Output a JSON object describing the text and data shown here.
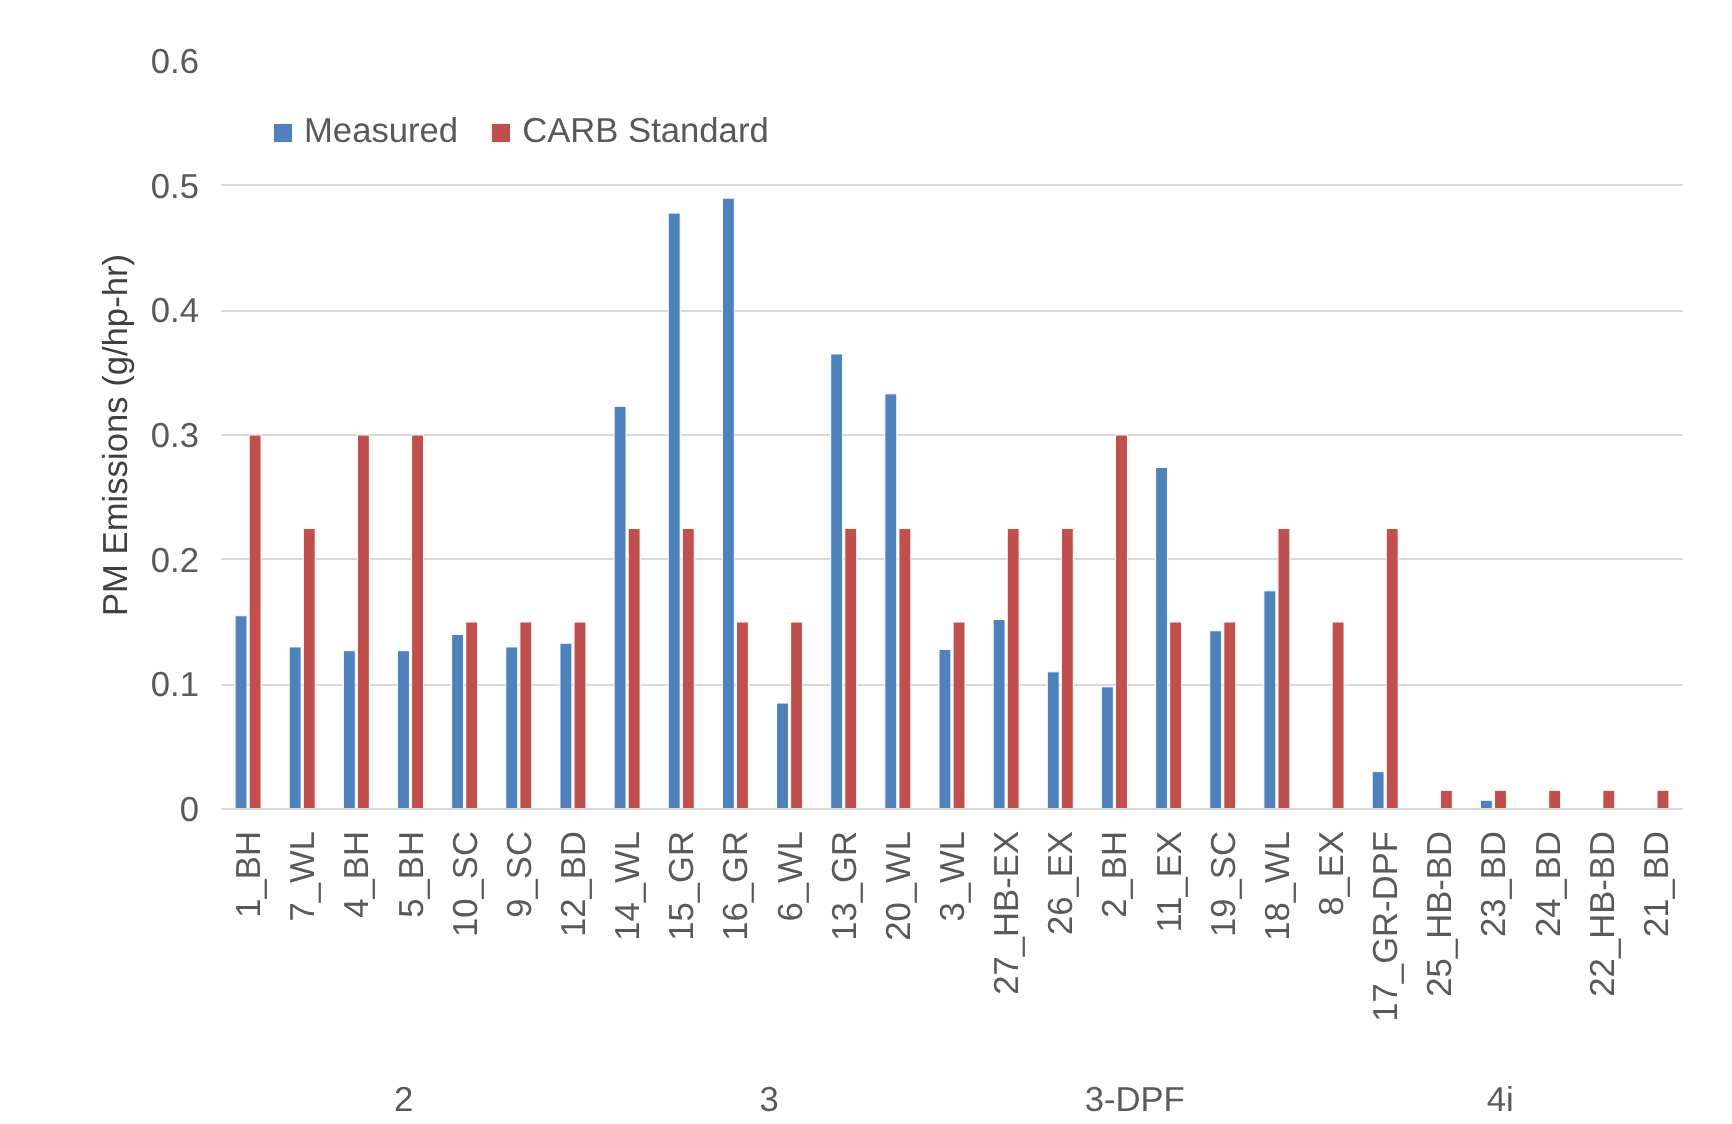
{
  "chart_data": {
    "type": "bar",
    "ylabel": "PM Emissions (g/hp-hr)",
    "categories": [
      "1_BH",
      "7_WL",
      "4_BH",
      "5_BH",
      "10_SC",
      "9_SC",
      "12_BD",
      "14_WL",
      "15_GR",
      "16_GR",
      "6_WL",
      "13_GR",
      "20_WL",
      "3_WL",
      "27_HB-EX",
      "26_EX",
      "2_BH",
      "11_EX",
      "19_SC",
      "18_WL",
      "8_EX",
      "17_GR-DPF",
      "25_HB-BD",
      "23_BD",
      "24_BD",
      "22_HB-BD",
      "21_BD"
    ],
    "series": [
      {
        "name": "Measured",
        "color": "#4f81bd",
        "values": [
          0.155,
          0.13,
          0.127,
          0.127,
          0.14,
          0.13,
          0.133,
          0.323,
          0.478,
          0.49,
          0.085,
          0.365,
          0.333,
          0.128,
          0.152,
          0.11,
          0.098,
          0.274,
          0.143,
          0.175,
          null,
          0.03,
          null,
          0.007,
          null,
          null,
          null
        ]
      },
      {
        "name": "CARB Standard",
        "color": "#c0504d",
        "values": [
          0.3,
          0.225,
          0.3,
          0.3,
          0.15,
          0.15,
          0.15,
          0.225,
          0.225,
          0.15,
          0.15,
          0.225,
          0.225,
          0.15,
          0.225,
          0.225,
          0.3,
          0.15,
          0.15,
          0.225,
          0.15,
          0.225,
          0.015,
          0.015,
          0.015,
          0.015,
          0.015
        ]
      }
    ],
    "annotations": [
      "2",
      "3",
      "3-DPF",
      "4i"
    ],
    "ylim": [
      0,
      0.6
    ],
    "yticks": [
      0,
      0.1,
      0.2,
      0.3,
      0.4,
      0.5,
      0.6
    ],
    "grid": "y",
    "legend": "top left"
  }
}
